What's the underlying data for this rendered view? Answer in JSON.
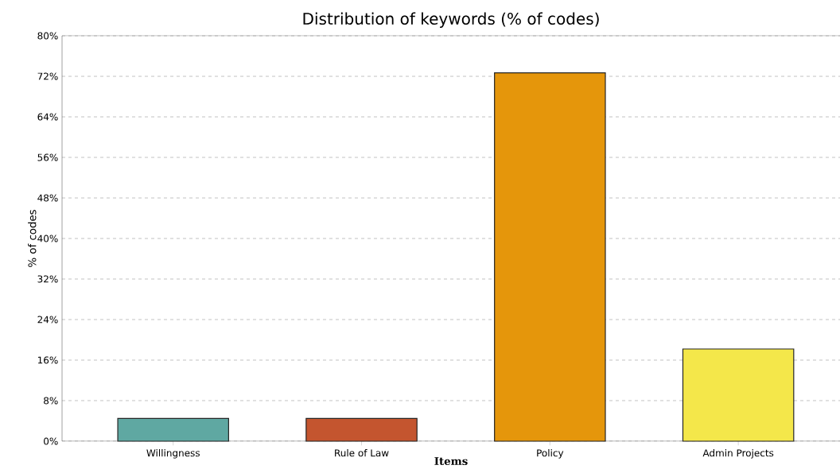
{
  "chart_data": {
    "type": "bar",
    "title": "Distribution of keywords (% of codes)",
    "xlabel": "Items",
    "ylabel": "% of codes",
    "categories": [
      "Willingness",
      "Rule of Law",
      "Policy",
      "Admin Projects"
    ],
    "values": [
      4.5,
      4.5,
      72.7,
      18.2
    ],
    "colors": [
      "#5fa8a2",
      "#c4552f",
      "#e5960b",
      "#f4e74a"
    ],
    "ylim": [
      0,
      80
    ],
    "yticks": [
      {
        "value": 0,
        "label": "0%"
      },
      {
        "value": 8,
        "label": "8%"
      },
      {
        "value": 16,
        "label": "16%"
      },
      {
        "value": 24,
        "label": "24%"
      },
      {
        "value": 32,
        "label": "32%"
      },
      {
        "value": 40,
        "label": "40%"
      },
      {
        "value": 48,
        "label": "48%"
      },
      {
        "value": 56,
        "label": "56%"
      },
      {
        "value": 64,
        "label": "64%"
      },
      {
        "value": 72,
        "label": "72%"
      },
      {
        "value": 80,
        "label": "80%"
      }
    ],
    "grid": "y"
  }
}
